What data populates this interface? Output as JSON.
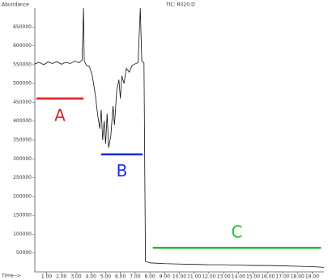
{
  "chart_data": {
    "type": "line",
    "title": "TIC: R020.D",
    "y_label": "Abundance",
    "x_label": "Time-->",
    "xlim": [
      0.2,
      19.8
    ],
    "ylim": [
      0,
      700000
    ],
    "xticks": [
      {
        "value": 1,
        "label": "1.00"
      },
      {
        "value": 2,
        "label": "2.00"
      },
      {
        "value": 3,
        "label": "3.00"
      },
      {
        "value": 4,
        "label": "4.00"
      },
      {
        "value": 5,
        "label": "5.00"
      },
      {
        "value": 6,
        "label": "6.00"
      },
      {
        "value": 7,
        "label": "7.00"
      },
      {
        "value": 8,
        "label": "8.00"
      },
      {
        "value": 9,
        "label": "9.00"
      },
      {
        "value": 10,
        "label": "10.00"
      },
      {
        "value": 11,
        "label": "11.00"
      },
      {
        "value": 12,
        "label": "12.00"
      },
      {
        "value": 13,
        "label": "13.00"
      },
      {
        "value": 14,
        "label": "14.00"
      },
      {
        "value": 15,
        "label": "15.00"
      },
      {
        "value": 16,
        "label": "16.00"
      },
      {
        "value": 17,
        "label": "17.00"
      },
      {
        "value": 18,
        "label": "18.00"
      },
      {
        "value": 19,
        "label": "19.00"
      }
    ],
    "yticks": [
      50000,
      100000,
      150000,
      200000,
      250000,
      300000,
      350000,
      400000,
      450000,
      500000,
      550000,
      600000,
      650000
    ],
    "x": [
      0.2,
      0.5,
      0.8,
      1.1,
      1.4,
      1.7,
      2.0,
      2.3,
      2.6,
      2.9,
      3.2,
      3.4,
      3.5,
      3.55,
      3.7,
      3.9,
      4.1,
      4.3,
      4.45,
      4.6,
      4.7,
      4.8,
      4.9,
      5.0,
      5.1,
      5.2,
      5.35,
      5.5,
      5.6,
      5.75,
      5.9,
      6.0,
      6.1,
      6.25,
      6.4,
      6.6,
      6.8,
      7.0,
      7.2,
      7.35,
      7.45,
      7.6,
      7.7,
      8.0,
      9,
      10,
      11,
      12,
      13,
      14,
      15,
      16,
      17,
      18,
      19,
      19.8
    ],
    "series": [
      {
        "color": "#111111",
        "values": [
          552000,
          556000,
          550000,
          557000,
          553000,
          558000,
          551000,
          556000,
          553000,
          559000,
          555000,
          562000,
          700000,
          560000,
          548000,
          545000,
          520000,
          470000,
          420000,
          380000,
          430000,
          350000,
          400000,
          340000,
          420000,
          330000,
          360000,
          440000,
          390000,
          480000,
          510000,
          460000,
          520000,
          500000,
          540000,
          530000,
          548000,
          552000,
          555000,
          700000,
          560000,
          555000,
          28000,
          24000,
          22000,
          21000,
          20000,
          19000,
          19000,
          18000,
          17000,
          17000,
          16000,
          15000,
          14000,
          12000
        ]
      }
    ],
    "annotations": [
      {
        "text": "A",
        "color": "#e02020",
        "x": [
          0.3,
          3.5
        ],
        "y": 460000,
        "label_position": "below"
      },
      {
        "text": "B",
        "color": "#1a2fd6",
        "x": [
          4.7,
          7.5
        ],
        "y": 312000,
        "label_position": "below"
      },
      {
        "text": "C",
        "color": "#22bb22",
        "x": [
          8.2,
          19.6
        ],
        "y": 64000,
        "label_position": "above"
      }
    ]
  }
}
